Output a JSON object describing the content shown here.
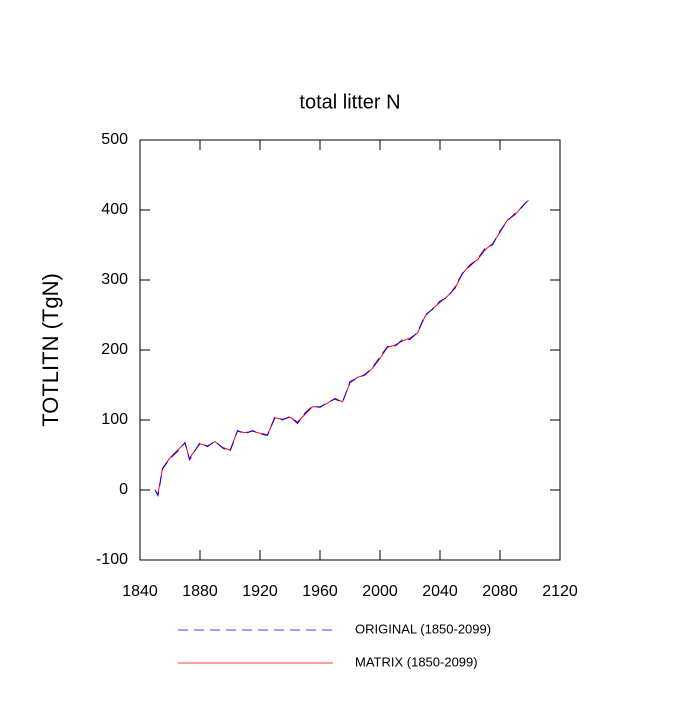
{
  "chart_data": {
    "type": "line",
    "title": "total litter N",
    "y_label": "TOTLITN  (TgN)",
    "x": [
      1850,
      1852,
      1855,
      1860,
      1865,
      1870,
      1873,
      1875,
      1880,
      1885,
      1890,
      1895,
      1900,
      1905,
      1910,
      1915,
      1920,
      1925,
      1930,
      1935,
      1940,
      1945,
      1950,
      1955,
      1960,
      1965,
      1970,
      1975,
      1980,
      1985,
      1990,
      1995,
      2000,
      2005,
      2010,
      2015,
      2020,
      2025,
      2030,
      2035,
      2040,
      2045,
      2050,
      2055,
      2060,
      2065,
      2070,
      2075,
      2080,
      2085,
      2090,
      2095,
      2099
    ],
    "series": [
      {
        "name": "ORIGINAL (1850-2099)",
        "color": "#0000ff",
        "dash": true,
        "values": [
          0,
          -8,
          30,
          45,
          55,
          68,
          43,
          50,
          68,
          62,
          70,
          60,
          55,
          85,
          80,
          85,
          80,
          78,
          105,
          100,
          105,
          95,
          110,
          120,
          118,
          125,
          130,
          125,
          155,
          160,
          165,
          175,
          190,
          205,
          205,
          215,
          215,
          225,
          250,
          258,
          270,
          275,
          290,
          310,
          320,
          330,
          345,
          350,
          370,
          385,
          395,
          405,
          415
        ]
      },
      {
        "name": "MATRIX (1850-2099)",
        "color": "#ff0000",
        "dash": false,
        "values": [
          0,
          -6,
          31,
          46,
          57,
          67,
          45,
          52,
          66,
          63,
          69,
          61,
          57,
          84,
          82,
          84,
          81,
          79,
          103,
          101,
          104,
          97,
          108,
          119,
          119,
          124,
          131,
          126,
          153,
          161,
          164,
          174,
          188,
          204,
          207,
          213,
          217,
          224,
          248,
          259,
          268,
          277,
          288,
          309,
          322,
          329,
          343,
          352,
          368,
          386,
          393,
          406,
          414
        ]
      }
    ],
    "xlim": [
      1840,
      2120
    ],
    "xticks": [
      1840,
      1880,
      1920,
      1960,
      2000,
      2040,
      2080,
      2120
    ],
    "ylim": [
      -100,
      500
    ],
    "yticks": [
      -100,
      0,
      100,
      200,
      300,
      400,
      500
    ]
  }
}
